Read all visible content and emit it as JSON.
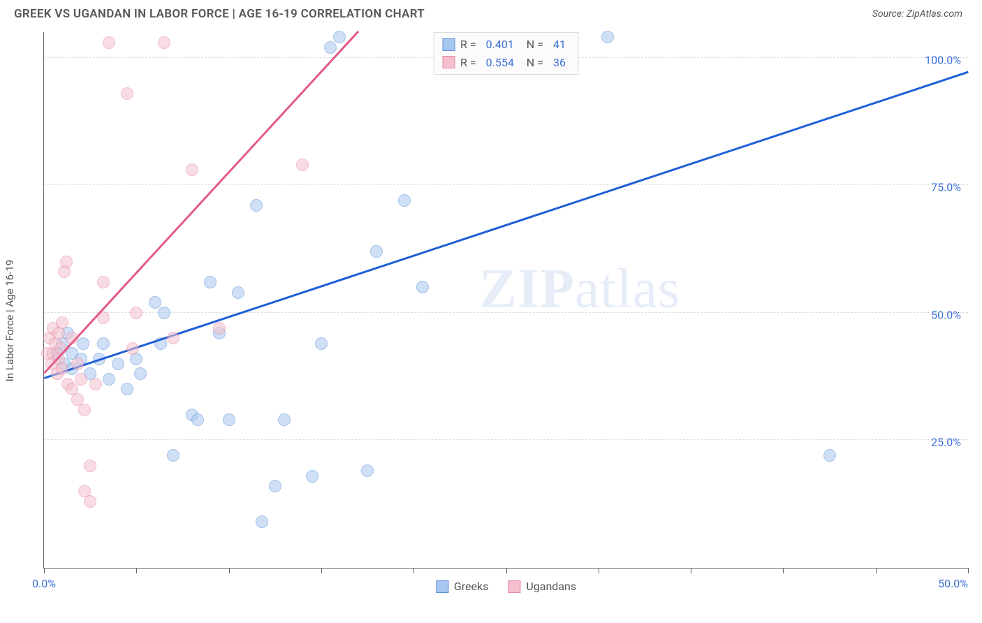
{
  "title": "GREEK VS UGANDAN IN LABOR FORCE | AGE 16-19 CORRELATION CHART",
  "source_label": "Source: ZipAtlas.com",
  "ylabel": "In Labor Force | Age 16-19",
  "watermark_bold": "ZIP",
  "watermark_rest": "atlas",
  "chart": {
    "type": "scatter",
    "xlim": [
      0,
      50
    ],
    "ylim": [
      0,
      105
    ],
    "x_ticks": [
      0,
      5,
      10,
      15,
      20,
      25,
      30,
      35,
      40,
      45,
      50
    ],
    "x_tick_labels": {
      "0": "0.0%",
      "50": "50.0%"
    },
    "y_gridlines": [
      25,
      50,
      75,
      100
    ],
    "y_tick_labels": {
      "25": "25.0%",
      "50": "50.0%",
      "75": "75.0%",
      "100": "100.0%"
    },
    "background_color": "#ffffff",
    "grid_color": "#dedede",
    "axis_color": "#666666",
    "tick_label_color": "#3b6fd6",
    "title_color": "#555555",
    "title_fontsize": 17,
    "label_fontsize": 15,
    "tick_fontsize": 16,
    "marker_radius": 9,
    "marker_opacity": 0.55,
    "series": [
      {
        "name": "Greeks",
        "marker_fill": "#a8c7f0",
        "marker_stroke": "#5a8fd8",
        "line_color": "#1f5fd8",
        "r": 0.401,
        "n": 41,
        "trend": {
          "x1": 0,
          "y1": 37,
          "x2": 50,
          "y2": 97
        },
        "points": [
          [
            0.7,
            42
          ],
          [
            1.0,
            44
          ],
          [
            1.1,
            40
          ],
          [
            1.3,
            46
          ],
          [
            1.5,
            42
          ],
          [
            1.5,
            39
          ],
          [
            2.0,
            41
          ],
          [
            2.1,
            44
          ],
          [
            2.5,
            38
          ],
          [
            3.0,
            41
          ],
          [
            3.2,
            44
          ],
          [
            3.5,
            37
          ],
          [
            4.0,
            40
          ],
          [
            4.5,
            35
          ],
          [
            5.0,
            41
          ],
          [
            5.2,
            38
          ],
          [
            6.0,
            52
          ],
          [
            6.3,
            44
          ],
          [
            6.5,
            50
          ],
          [
            7.0,
            22
          ],
          [
            8.0,
            30
          ],
          [
            8.3,
            29
          ],
          [
            9.0,
            56
          ],
          [
            9.5,
            46
          ],
          [
            10.0,
            29
          ],
          [
            10.5,
            54
          ],
          [
            11.5,
            71
          ],
          [
            11.8,
            9
          ],
          [
            12.5,
            16
          ],
          [
            13.0,
            29
          ],
          [
            14.5,
            18
          ],
          [
            15.0,
            44
          ],
          [
            15.5,
            102
          ],
          [
            16.0,
            104
          ],
          [
            17.5,
            19
          ],
          [
            18.0,
            62
          ],
          [
            19.5,
            72
          ],
          [
            20.5,
            55
          ],
          [
            21.5,
            102
          ],
          [
            30.5,
            104
          ],
          [
            42.5,
            22
          ]
        ]
      },
      {
        "name": "Ugandans",
        "marker_fill": "#f4c0cd",
        "marker_stroke": "#e886a3",
        "line_color": "#e35a87",
        "r": 0.554,
        "n": 36,
        "trend": {
          "x1": 0,
          "y1": 38,
          "x2": 17,
          "y2": 105
        },
        "points": [
          [
            0.2,
            42
          ],
          [
            0.3,
            45
          ],
          [
            0.4,
            40
          ],
          [
            0.5,
            47
          ],
          [
            0.5,
            42
          ],
          [
            0.6,
            44
          ],
          [
            0.7,
            38
          ],
          [
            0.8,
            46
          ],
          [
            0.8,
            41
          ],
          [
            0.9,
            43
          ],
          [
            1.0,
            48
          ],
          [
            1.0,
            39
          ],
          [
            1.1,
            58
          ],
          [
            1.2,
            60
          ],
          [
            1.3,
            36
          ],
          [
            1.5,
            45
          ],
          [
            1.5,
            35
          ],
          [
            1.8,
            40
          ],
          [
            1.8,
            33
          ],
          [
            2.0,
            37
          ],
          [
            2.2,
            31
          ],
          [
            2.2,
            15
          ],
          [
            2.5,
            20
          ],
          [
            2.5,
            13
          ],
          [
            2.8,
            36
          ],
          [
            3.2,
            49
          ],
          [
            3.2,
            56
          ],
          [
            3.5,
            103
          ],
          [
            4.5,
            93
          ],
          [
            4.8,
            43
          ],
          [
            5.0,
            50
          ],
          [
            6.5,
            103
          ],
          [
            7.0,
            45
          ],
          [
            8.0,
            78
          ],
          [
            9.5,
            47
          ],
          [
            14.0,
            79
          ]
        ]
      }
    ]
  },
  "legend_top": {
    "rows": [
      {
        "series": "Greeks",
        "r_label": "R =",
        "n_label": "N ="
      },
      {
        "series": "Ugandans",
        "r_label": "R =",
        "n_label": "N ="
      }
    ]
  },
  "legend_bottom": {
    "items": [
      "Greeks",
      "Ugandans"
    ]
  }
}
